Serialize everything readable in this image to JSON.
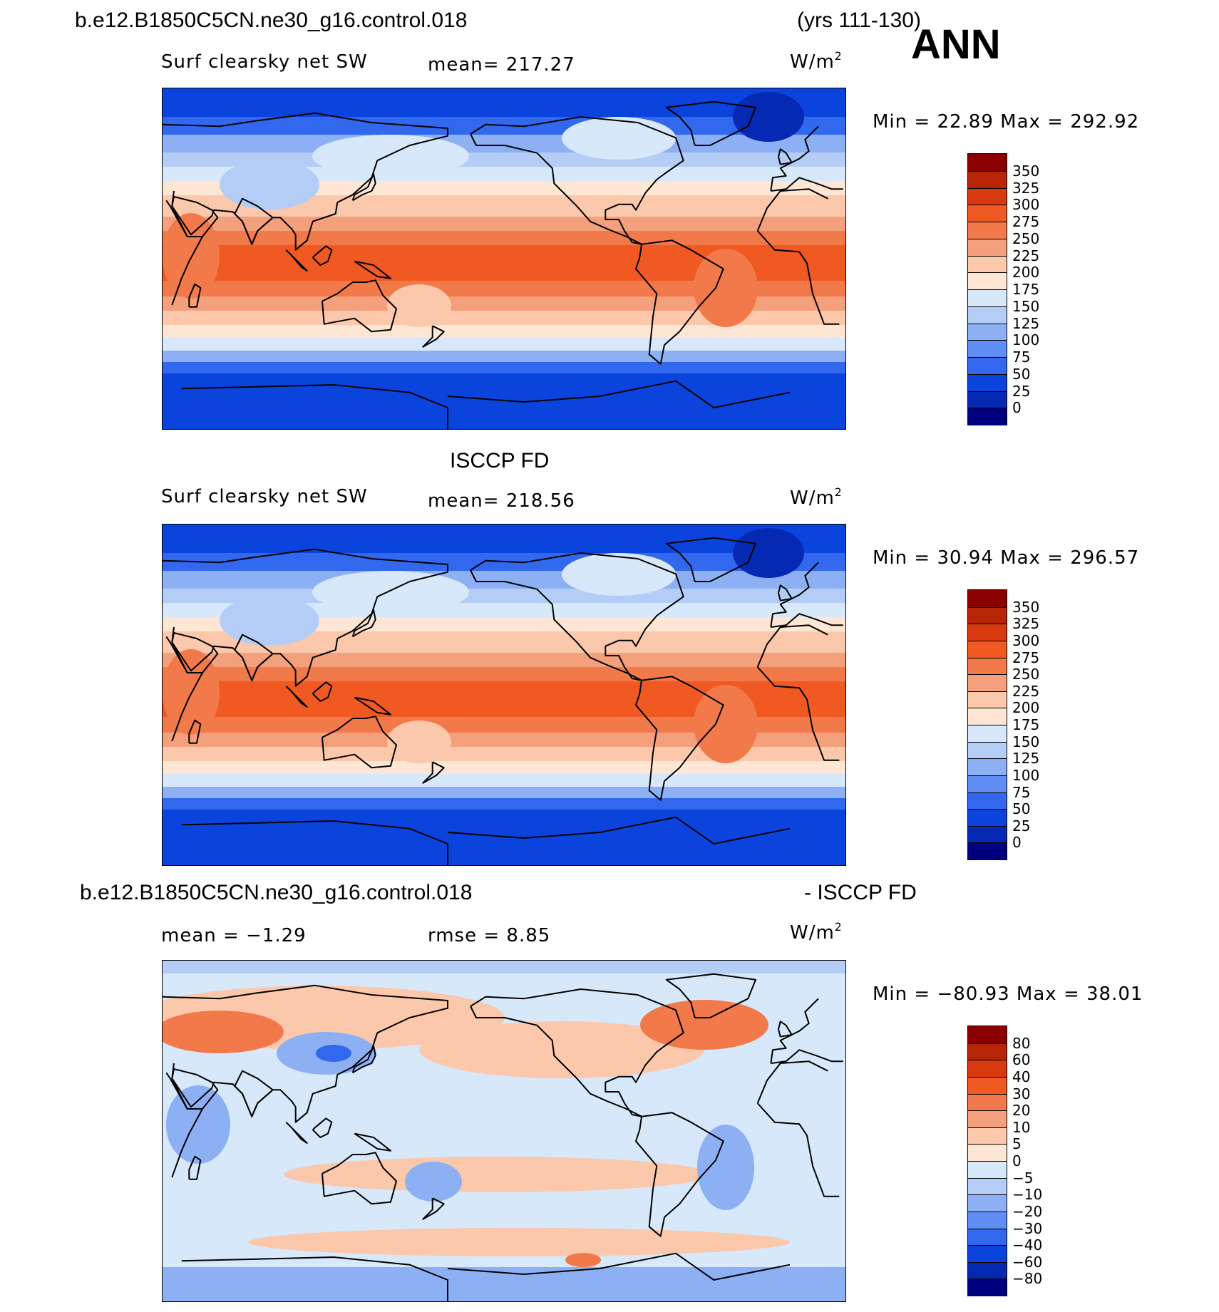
{
  "header": {
    "case_name": "b.e12.B1850C5CN.ne30_g16.control.018",
    "years": "(yrs 111-130)",
    "season": "ANN"
  },
  "panels": [
    {
      "title": "",
      "variable": "Surf clearsky net SW",
      "stat": "mean=  217.27",
      "units": "W/m",
      "minmax": "Min =   22.89  Max =  292.92",
      "kind": "absolute"
    },
    {
      "title": "ISCCP FD",
      "variable": "Surf clearsky net SW",
      "stat": "mean=  218.56",
      "units": "W/m",
      "minmax": "Min =   30.94  Max =  296.57",
      "kind": "absolute"
    },
    {
      "title_left": "b.e12.B1850C5CN.ne30_g16.control.018",
      "title_right": "- ISCCP FD",
      "stat_left": "mean =   −1.29",
      "stat_right": "rmse =     8.85",
      "units": "W/m",
      "minmax": "Min = −80.93  Max =   38.01",
      "kind": "difference"
    }
  ],
  "colorbars": {
    "absolute": {
      "labels": [
        "350",
        "325",
        "300",
        "275",
        "250",
        "225",
        "200",
        "175",
        "150",
        "125",
        "100",
        "75",
        "50",
        "25",
        "0"
      ],
      "colors": [
        "#8b0000",
        "#b82506",
        "#d9390e",
        "#f05a22",
        "#f27a4a",
        "#f5a07c",
        "#fbc8ac",
        "#fde6d4",
        "#d7e8fa",
        "#b4cdf7",
        "#8db0f5",
        "#5f8ff5",
        "#3168ee",
        "#0b44dd",
        "#0529b3",
        "#00007f"
      ]
    },
    "difference": {
      "labels": [
        "80",
        "60",
        "40",
        "30",
        "20",
        "10",
        "5",
        "0",
        "−5",
        "−10",
        "−20",
        "−30",
        "−40",
        "−60",
        "−80"
      ],
      "colors": [
        "#8b0000",
        "#b82506",
        "#d9390e",
        "#f05a22",
        "#f27a4a",
        "#f5a07c",
        "#fbc8ac",
        "#fde6d4",
        "#d7e8fa",
        "#b4cdf7",
        "#8db0f5",
        "#5f8ff5",
        "#3168ee",
        "#0b44dd",
        "#0529b3",
        "#00007f"
      ]
    }
  },
  "map_colors": {
    "ocean_polar": "#0b44dd",
    "ocean_subpolar": "#3168ee",
    "ocean_mid": "#8db0f5",
    "ocean_pale": "#d7e8fa",
    "ocean_subtropic": "#fbc8ac",
    "ocean_tropic": "#f05a22",
    "diff_base": "#d7e8fa",
    "diff_warm": "#fbc8ac",
    "diff_hot": "#f27a4a",
    "diff_cool": "#8db0f5",
    "coast": "#000000"
  }
}
